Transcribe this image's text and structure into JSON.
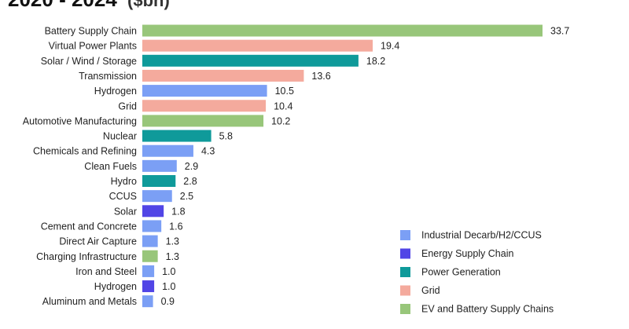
{
  "chart_data": {
    "type": "bar",
    "orientation": "horizontal",
    "title": "2020 - 2024",
    "title_unit": "($bn)",
    "xlim": [
      0,
      33.7
    ],
    "legend_position": "bottom-right",
    "groups": {
      "industrial": {
        "name": "Industrial Decarb/H2/CCUS",
        "color": "#7b9ff5"
      },
      "energy": {
        "name": "Energy Supply Chain",
        "color": "#5145e6"
      },
      "power": {
        "name": "Power Generation",
        "color": "#0f9a9a"
      },
      "grid": {
        "name": "Grid",
        "color": "#f4aa9d"
      },
      "ev": {
        "name": "EV and Battery Supply Chains",
        "color": "#98c67a"
      }
    },
    "legend_order": [
      "industrial",
      "energy",
      "power",
      "grid",
      "ev"
    ],
    "bars": [
      {
        "category": "Battery Supply Chain",
        "value": 33.7,
        "label": "33.7",
        "group": "ev"
      },
      {
        "category": "Virtual Power Plants",
        "value": 19.4,
        "label": "19.4",
        "group": "grid"
      },
      {
        "category": "Solar / Wind / Storage",
        "value": 18.2,
        "label": "18.2",
        "group": "power"
      },
      {
        "category": "Transmission",
        "value": 13.6,
        "label": "13.6",
        "group": "grid"
      },
      {
        "category": "Hydrogen",
        "value": 10.5,
        "label": "10.5",
        "group": "industrial"
      },
      {
        "category": "Grid",
        "value": 10.4,
        "label": "10.4",
        "group": "grid"
      },
      {
        "category": "Automotive Manufacturing",
        "value": 10.2,
        "label": "10.2",
        "group": "ev"
      },
      {
        "category": "Nuclear",
        "value": 5.8,
        "label": "5.8",
        "group": "power"
      },
      {
        "category": "Chemicals and Refining",
        "value": 4.3,
        "label": "4.3",
        "group": "industrial"
      },
      {
        "category": "Clean Fuels",
        "value": 2.9,
        "label": "2.9",
        "group": "industrial"
      },
      {
        "category": "Hydro",
        "value": 2.8,
        "label": "2.8",
        "group": "power"
      },
      {
        "category": "CCUS",
        "value": 2.5,
        "label": "2.5",
        "group": "industrial"
      },
      {
        "category": "Solar",
        "value": 1.8,
        "label": "1.8",
        "group": "energy"
      },
      {
        "category": "Cement and Concrete",
        "value": 1.6,
        "label": "1.6",
        "group": "industrial"
      },
      {
        "category": "Direct Air Capture",
        "value": 1.3,
        "label": "1.3",
        "group": "industrial"
      },
      {
        "category": "Charging Infrastructure",
        "value": 1.3,
        "label": "1.3",
        "group": "ev"
      },
      {
        "category": "Iron and Steel",
        "value": 1.0,
        "label": "1.0",
        "group": "industrial"
      },
      {
        "category": "Hydrogen",
        "value": 1.0,
        "label": "1.0",
        "group": "energy"
      },
      {
        "category": "Aluminum and Metals",
        "value": 0.9,
        "label": "0.9",
        "group": "industrial"
      }
    ]
  }
}
